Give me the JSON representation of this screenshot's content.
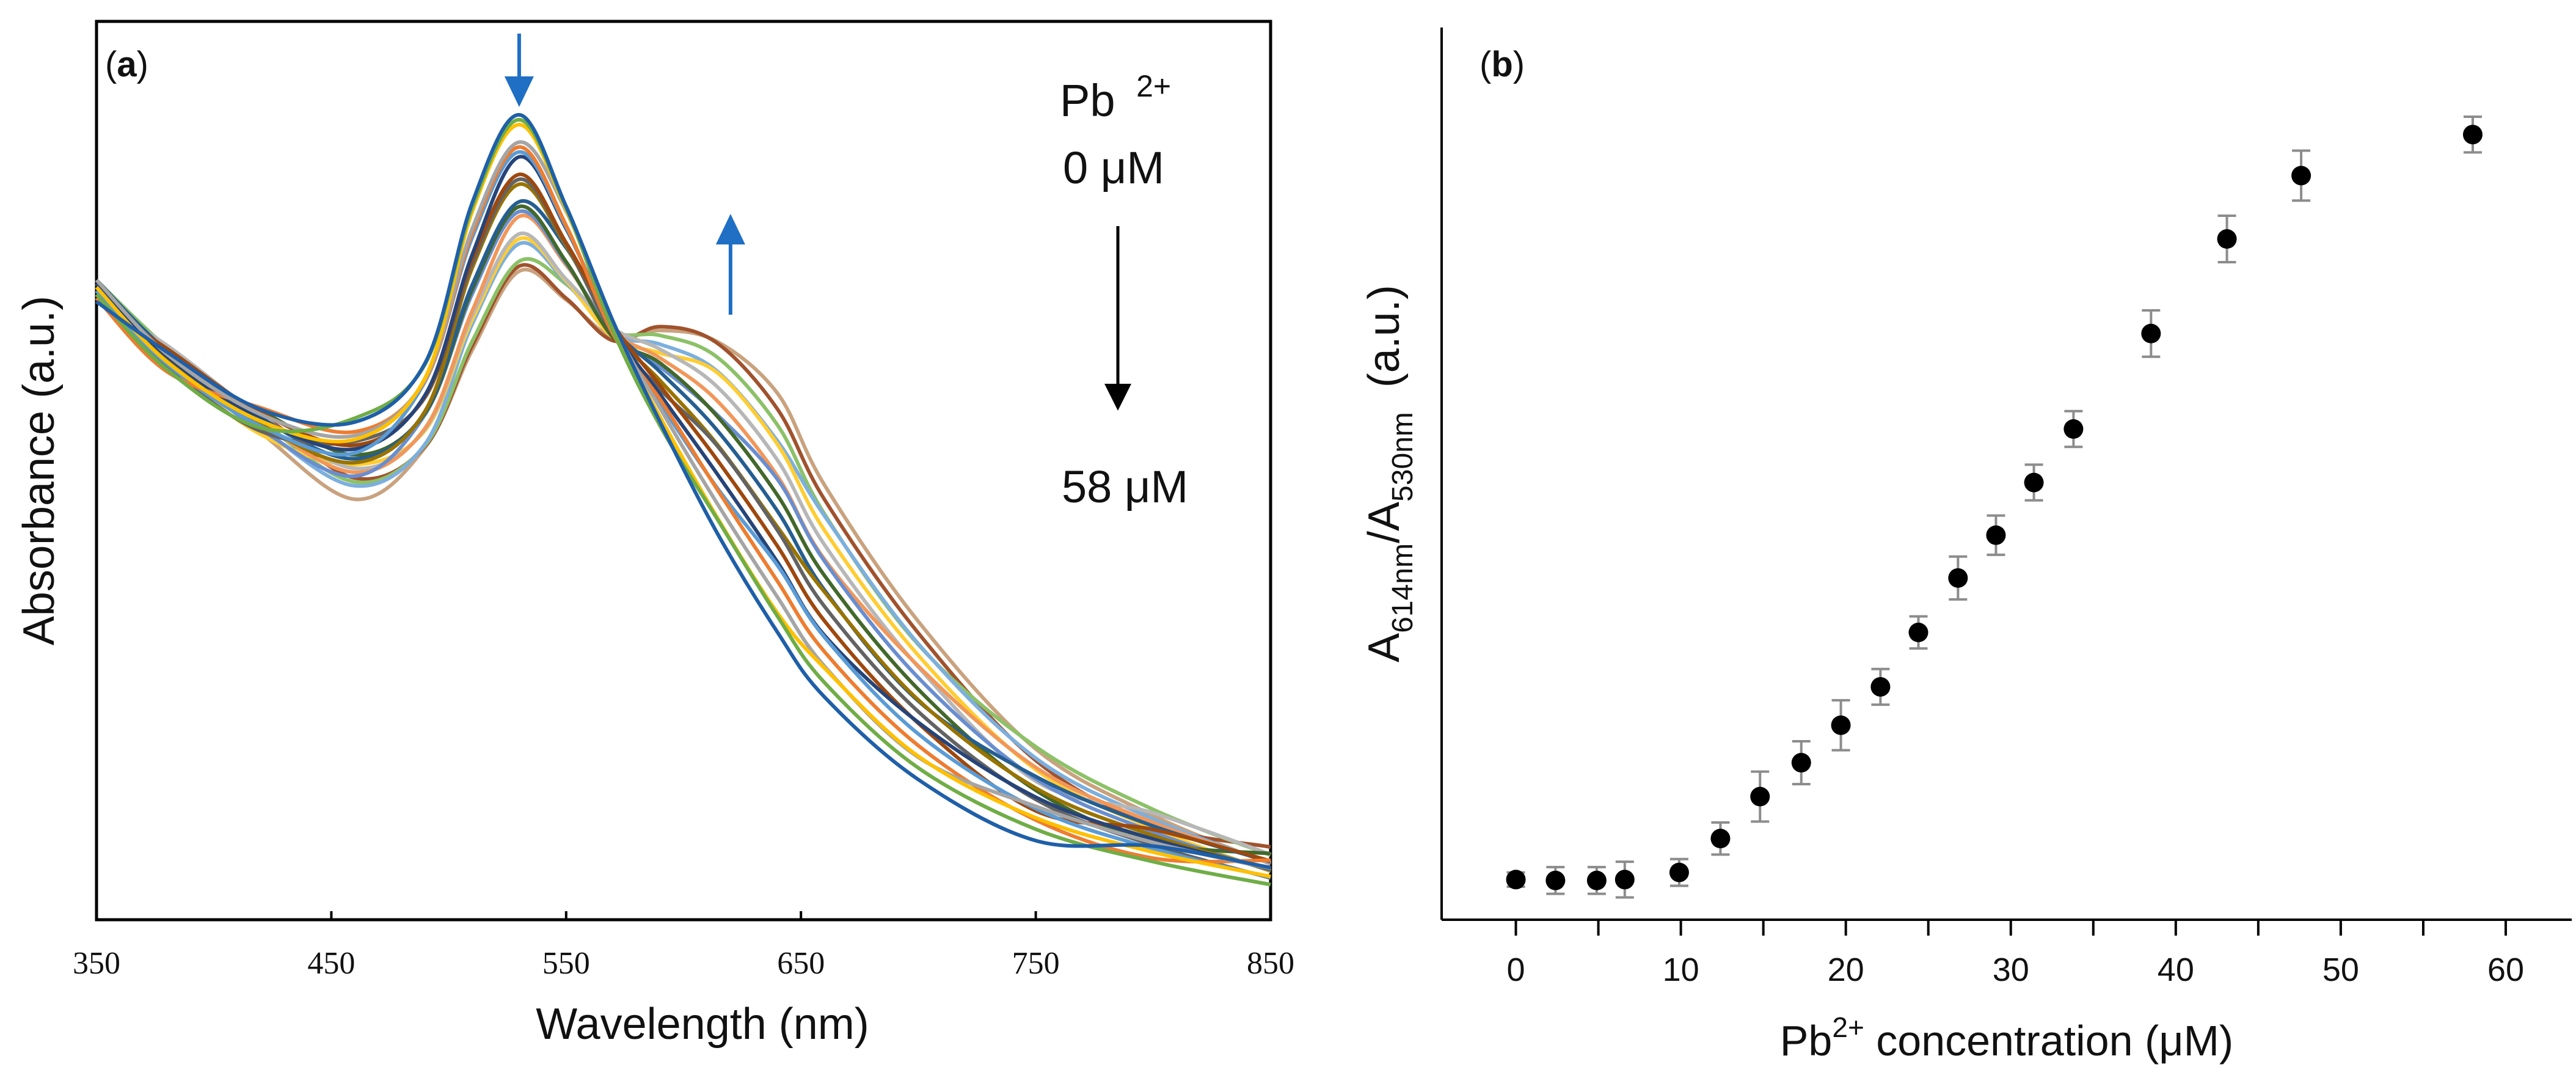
{
  "chart_data": [
    {
      "type": "line",
      "panel_label": "a",
      "title": "",
      "xlabel": "Wavelength (nm)",
      "ylabel": "Absorbance (a.u.)",
      "xlim": [
        350,
        850
      ],
      "ylim": [
        0,
        1
      ],
      "x_ticks": [
        "350",
        "450",
        "550",
        "650",
        "750",
        "850"
      ],
      "y_ticks": [],
      "grid": false,
      "legend": "none",
      "annotations": {
        "ion": "Pb",
        "ion_charge": "2+",
        "start_conc": "0 μM",
        "end_conc": "58 μM"
      },
      "series_note": "absorbance spectra recorded with increasing Pb2+ concentration (0 to 58 μM); peak near 530 nm decreases while shoulder near 614 nm increases",
      "series_colors": [
        "#1f5fa8",
        "#70ad47",
        "#ffc000",
        "#a5a5a5",
        "#ed7d31",
        "#5b9bd5",
        "#264478",
        "#9e480e",
        "#636363",
        "#997300",
        "#255e91",
        "#43682b",
        "#698ed0",
        "#f1975a",
        "#b7b7b7",
        "#ffcd33",
        "#7cafdd",
        "#8cc168",
        "#a0522d",
        "#c9a27e"
      ],
      "family": {
        "x_points": [
          350,
          380,
          420,
          460,
          490,
          510,
          530,
          550,
          570,
          590,
          614,
          640,
          660,
          700,
          750,
          800,
          850
        ],
        "start": [
          0.7,
          0.62,
          0.56,
          0.55,
          0.62,
          0.8,
          0.9,
          0.8,
          0.66,
          0.55,
          0.43,
          0.32,
          0.25,
          0.16,
          0.1,
          0.07,
          0.05
        ],
        "end": [
          0.7,
          0.63,
          0.55,
          0.48,
          0.52,
          0.63,
          0.72,
          0.69,
          0.65,
          0.66,
          0.65,
          0.58,
          0.48,
          0.33,
          0.19,
          0.12,
          0.07
        ]
      },
      "arrows": [
        {
          "label": "peak-decrease",
          "x": 530,
          "direction": "down",
          "color": "#1f6fc4"
        },
        {
          "label": "shoulder-increase",
          "x": 620,
          "direction": "up",
          "color": "#1f6fc4"
        }
      ]
    },
    {
      "type": "scatter",
      "panel_label": "b",
      "title": "",
      "xlabel_main": "Pb",
      "xlabel_sup": "2+",
      "xlabel_rest": " concentration (μM)",
      "ylabel_a": "A",
      "ylabel_sub1": "614nm",
      "ylabel_mid": "/A",
      "ylabel_sub2": "530nm",
      "ylabel_unit": "(a.u.)",
      "xlim": [
        -4.5,
        64
      ],
      "ylim": [
        0,
        1
      ],
      "x_ticks": [
        "0",
        "10",
        "20",
        "30",
        "40",
        "50",
        "60"
      ],
      "y_ticks": [],
      "grid": false,
      "legend": "none",
      "x": [
        0,
        2.4,
        4.9,
        6.6,
        9.9,
        12.4,
        14.8,
        17.3,
        19.7,
        22.1,
        24.4,
        26.8,
        29.1,
        31.4,
        33.8,
        38.5,
        43.1,
        47.6,
        58
      ],
      "y": [
        0.045,
        0.044,
        0.044,
        0.045,
        0.053,
        0.091,
        0.138,
        0.176,
        0.218,
        0.261,
        0.322,
        0.383,
        0.431,
        0.49,
        0.55,
        0.657,
        0.763,
        0.834,
        0.88
      ],
      "yerr": [
        0.008,
        0.015,
        0.015,
        0.02,
        0.015,
        0.018,
        0.028,
        0.024,
        0.028,
        0.02,
        0.018,
        0.024,
        0.022,
        0.02,
        0.02,
        0.026,
        0.026,
        0.028,
        0.02
      ],
      "marker_color": "#000000"
    }
  ]
}
